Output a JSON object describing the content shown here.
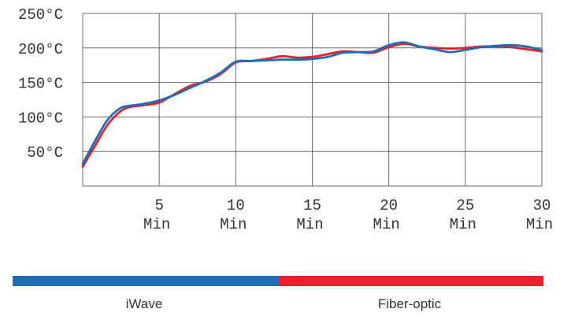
{
  "chart_data": {
    "type": "line",
    "title": "",
    "xlabel": "",
    "ylabel": "",
    "x_unit": "Min",
    "y_unit": "°C",
    "xlim": [
      0,
      30
    ],
    "ylim": [
      0,
      250
    ],
    "x_ticks": [
      5,
      10,
      15,
      20,
      25,
      30
    ],
    "y_ticks": [
      50,
      100,
      150,
      200,
      250
    ],
    "y_tick_labels": [
      "50°C",
      "100°C",
      "150°C",
      "200°C",
      "250°C"
    ],
    "x_tick_values": [
      "5",
      "10",
      "15",
      "20",
      "25",
      "30"
    ],
    "x_tick_units": [
      "Min",
      "Min",
      "Min",
      "Min",
      "Min",
      "Min"
    ],
    "grid": true,
    "legend_placement": "bottom",
    "series": [
      {
        "name": "iWave",
        "color": "#1f6eb5",
        "points": [
          [
            0,
            32
          ],
          [
            0.8,
            65
          ],
          [
            1.6,
            95
          ],
          [
            2.4,
            112
          ],
          [
            3,
            116
          ],
          [
            4,
            119
          ],
          [
            5,
            124
          ],
          [
            6,
            132
          ],
          [
            7,
            142
          ],
          [
            8,
            152
          ],
          [
            9,
            164
          ],
          [
            10,
            180
          ],
          [
            11,
            181
          ],
          [
            12,
            182
          ],
          [
            13,
            183
          ],
          [
            14,
            183
          ],
          [
            15,
            184
          ],
          [
            16,
            187
          ],
          [
            17,
            193
          ],
          [
            18,
            194
          ],
          [
            19,
            195
          ],
          [
            20,
            204
          ],
          [
            21,
            208
          ],
          [
            22,
            202
          ],
          [
            23,
            198
          ],
          [
            24,
            194
          ],
          [
            25,
            197
          ],
          [
            26,
            201
          ],
          [
            27,
            203
          ],
          [
            28,
            204
          ],
          [
            29,
            202
          ],
          [
            30,
            197
          ]
        ]
      },
      {
        "name": "Fiber-optic",
        "color": "#e8212a",
        "points": [
          [
            0,
            28
          ],
          [
            0.8,
            58
          ],
          [
            1.6,
            88
          ],
          [
            2.4,
            107
          ],
          [
            3,
            114
          ],
          [
            4,
            117
          ],
          [
            5,
            121
          ],
          [
            6,
            133
          ],
          [
            7,
            145
          ],
          [
            8,
            151
          ],
          [
            9,
            162
          ],
          [
            10,
            179
          ],
          [
            11,
            181
          ],
          [
            12,
            184
          ],
          [
            13,
            188
          ],
          [
            14,
            186
          ],
          [
            15,
            187
          ],
          [
            16,
            191
          ],
          [
            17,
            195
          ],
          [
            18,
            194
          ],
          [
            19,
            193
          ],
          [
            20,
            201
          ],
          [
            21,
            206
          ],
          [
            22,
            202
          ],
          [
            23,
            200
          ],
          [
            24,
            199
          ],
          [
            25,
            200
          ],
          [
            26,
            202
          ],
          [
            27,
            202
          ],
          [
            28,
            201
          ],
          [
            29,
            198
          ],
          [
            30,
            195
          ]
        ]
      }
    ],
    "legend": {
      "bar_split": 0.5,
      "items": [
        {
          "label": "iWave",
          "color": "#1f6eb5"
        },
        {
          "label": "Fiber-optic",
          "color": "#e8212a"
        }
      ]
    }
  }
}
